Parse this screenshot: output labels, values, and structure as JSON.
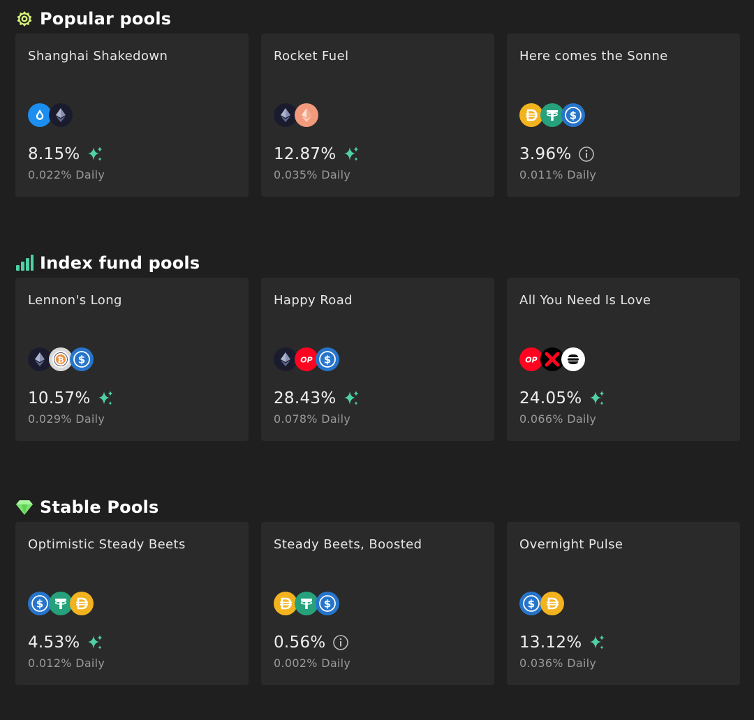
{
  "sections": [
    {
      "title": "Popular pools",
      "icon": "gear-badge-icon",
      "pools": [
        {
          "name": "Shanghai Shakedown",
          "tokens": [
            "steth",
            "eth"
          ],
          "apr": "8.15%",
          "apr_icon": "sparkle-icon",
          "daily": "0.022% Daily"
        },
        {
          "name": "Rocket Fuel",
          "tokens": [
            "eth",
            "reth"
          ],
          "apr": "12.87%",
          "apr_icon": "sparkle-icon",
          "daily": "0.035% Daily"
        },
        {
          "name": "Here comes the Sonne",
          "tokens": [
            "dai",
            "usdt",
            "usdc"
          ],
          "apr": "3.96%",
          "apr_icon": "info-icon",
          "daily": "0.011% Daily"
        }
      ]
    },
    {
      "title": "Index fund pools",
      "icon": "bar-chart-icon",
      "pools": [
        {
          "name": "Lennon's Long",
          "tokens": [
            "eth",
            "wbtc",
            "usdc"
          ],
          "apr": "10.57%",
          "apr_icon": "sparkle-icon",
          "daily": "0.029% Daily"
        },
        {
          "name": "Happy Road",
          "tokens": [
            "eth",
            "op",
            "usdc"
          ],
          "apr": "28.43%",
          "apr_icon": "sparkle-icon",
          "daily": "0.078% Daily"
        },
        {
          "name": "All You Need Is Love",
          "tokens": [
            "op",
            "x-token",
            "stack-token"
          ],
          "apr": "24.05%",
          "apr_icon": "sparkle-icon",
          "daily": "0.066% Daily"
        }
      ]
    },
    {
      "title": "Stable Pools",
      "icon": "gem-icon",
      "pools": [
        {
          "name": "Optimistic Steady Beets",
          "tokens": [
            "usdc",
            "usdt",
            "dai"
          ],
          "apr": "4.53%",
          "apr_icon": "sparkle-icon",
          "daily": "0.012% Daily"
        },
        {
          "name": "Steady Beets, Boosted",
          "tokens": [
            "dai",
            "usdt",
            "usdc"
          ],
          "apr": "0.56%",
          "apr_icon": "info-icon",
          "daily": "0.002% Daily"
        },
        {
          "name": "Overnight Pulse",
          "tokens": [
            "usdc",
            "dai"
          ],
          "apr": "13.12%",
          "apr_icon": "sparkle-icon",
          "daily": "0.036% Daily"
        }
      ]
    }
  ],
  "colors": {
    "background": "#1f1f1f",
    "card": "#2a2a2a",
    "sparkle": "#4fd1a5",
    "eth": "#1a1c2e",
    "steth": "#1c8ef0",
    "reth": "#f29a7c",
    "dai": "#f3b31f",
    "usdt": "#26a17b",
    "usdc": "#2775ca",
    "op": "#ff0420",
    "wbtc": "#d9d9d9"
  },
  "token_labels": {
    "op": "OP"
  }
}
